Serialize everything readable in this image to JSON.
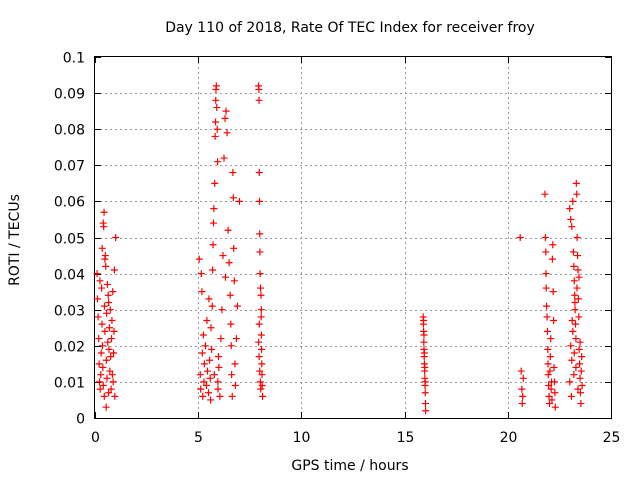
{
  "chart_data": {
    "type": "scatter",
    "title": "Day 110 of 2018, Rate Of TEC Index for receiver froy",
    "xlabel": "GPS time / hours",
    "ylabel": "ROTI / TECUs",
    "xlim": [
      0,
      25
    ],
    "ylim": [
      0,
      0.1
    ],
    "x_ticks": [
      0,
      5,
      10,
      15,
      20,
      25
    ],
    "x_tick_labels": [
      "0",
      "5",
      "10",
      "15",
      "20",
      "25"
    ],
    "y_ticks": [
      0,
      0.01,
      0.02,
      0.03,
      0.04,
      0.05,
      0.06,
      0.07,
      0.08,
      0.09,
      0.1
    ],
    "y_tick_labels": [
      "0",
      "0.01",
      "0.02",
      "0.03",
      "0.04",
      "0.05",
      "0.06",
      "0.07",
      "0.08",
      "0.09",
      "0.1"
    ],
    "grid": true,
    "marker": "+",
    "marker_color": "#ff0000",
    "series": [
      {
        "name": "ROTI",
        "points": [
          [
            0.1,
            0.04
          ],
          [
            0.12,
            0.033
          ],
          [
            0.15,
            0.028
          ],
          [
            0.18,
            0.022
          ],
          [
            0.2,
            0.015
          ],
          [
            0.22,
            0.01
          ],
          [
            0.25,
            0.008
          ],
          [
            0.28,
            0.012
          ],
          [
            0.3,
            0.018
          ],
          [
            0.32,
            0.036
          ],
          [
            0.34,
            0.026
          ],
          [
            0.36,
            0.02
          ],
          [
            0.38,
            0.014
          ],
          [
            0.4,
            0.009
          ],
          [
            0.4,
            0.054
          ],
          [
            0.42,
            0.053
          ],
          [
            0.44,
            0.057
          ],
          [
            0.45,
            0.006
          ],
          [
            0.46,
            0.031
          ],
          [
            0.48,
            0.024
          ],
          [
            0.5,
            0.045
          ],
          [
            0.52,
            0.042
          ],
          [
            0.54,
            0.003
          ],
          [
            0.55,
            0.016
          ],
          [
            0.56,
            0.029
          ],
          [
            0.58,
            0.011
          ],
          [
            0.6,
            0.037
          ],
          [
            0.62,
            0.021
          ],
          [
            0.64,
            0.034
          ],
          [
            0.66,
            0.007
          ],
          [
            0.68,
            0.019
          ],
          [
            0.7,
            0.025
          ],
          [
            0.72,
            0.013
          ],
          [
            0.74,
            0.03
          ],
          [
            0.76,
            0.017
          ],
          [
            0.78,
            0.008
          ],
          [
            0.8,
            0.022
          ],
          [
            0.82,
            0.027
          ],
          [
            0.84,
            0.012
          ],
          [
            0.86,
            0.035
          ],
          [
            0.88,
            0.01
          ],
          [
            0.9,
            0.018
          ],
          [
            0.92,
            0.024
          ],
          [
            0.94,
            0.041
          ],
          [
            0.96,
            0.006
          ],
          [
            1.0,
            0.05
          ],
          [
            0.35,
            0.047
          ],
          [
            0.48,
            0.044
          ],
          [
            0.24,
            0.038
          ],
          [
            0.66,
            0.032
          ],
          [
            5.05,
            0.044
          ],
          [
            5.1,
            0.012
          ],
          [
            5.12,
            0.008
          ],
          [
            5.15,
            0.04
          ],
          [
            5.18,
            0.035
          ],
          [
            5.2,
            0.018
          ],
          [
            5.22,
            0.006
          ],
          [
            5.25,
            0.023
          ],
          [
            5.28,
            0.01
          ],
          [
            5.3,
            0.015
          ],
          [
            5.35,
            0.02
          ],
          [
            5.4,
            0.009
          ],
          [
            5.42,
            0.027
          ],
          [
            5.45,
            0.013
          ],
          [
            5.5,
            0.007
          ],
          [
            5.52,
            0.033
          ],
          [
            5.55,
            0.016
          ],
          [
            5.58,
            0.011
          ],
          [
            5.6,
            0.005
          ],
          [
            5.62,
            0.025
          ],
          [
            5.65,
            0.019
          ],
          [
            5.68,
            0.031
          ],
          [
            5.7,
            0.041
          ],
          [
            5.72,
            0.048
          ],
          [
            5.74,
            0.054
          ],
          [
            5.76,
            0.058
          ],
          [
            5.78,
            0.012
          ],
          [
            5.8,
            0.065
          ],
          [
            5.82,
            0.078
          ],
          [
            5.84,
            0.082
          ],
          [
            5.85,
            0.088
          ],
          [
            5.86,
            0.091
          ],
          [
            5.88,
            0.092
          ],
          [
            5.9,
            0.086
          ],
          [
            5.92,
            0.08
          ],
          [
            5.94,
            0.071
          ],
          [
            5.95,
            0.01
          ],
          [
            5.96,
            0.008
          ],
          [
            5.98,
            0.017
          ],
          [
            6.0,
            0.014
          ],
          [
            6.05,
            0.006
          ],
          [
            6.1,
            0.022
          ],
          [
            6.15,
            0.03
          ],
          [
            6.2,
            0.045
          ],
          [
            6.25,
            0.072
          ],
          [
            6.3,
            0.083
          ],
          [
            6.35,
            0.085
          ],
          [
            6.4,
            0.079
          ],
          [
            6.45,
            0.052
          ],
          [
            6.5,
            0.043
          ],
          [
            6.55,
            0.034
          ],
          [
            6.58,
            0.026
          ],
          [
            6.6,
            0.02
          ],
          [
            6.62,
            0.012
          ],
          [
            6.65,
            0.006
          ],
          [
            6.68,
            0.068
          ],
          [
            6.7,
            0.061
          ],
          [
            6.72,
            0.047
          ],
          [
            6.75,
            0.038
          ],
          [
            6.78,
            0.015
          ],
          [
            6.8,
            0.009
          ],
          [
            6.85,
            0.022
          ],
          [
            6.9,
            0.031
          ],
          [
            7.0,
            0.06
          ],
          [
            6.32,
            0.039
          ],
          [
            7.92,
            0.092
          ],
          [
            7.94,
            0.091
          ],
          [
            7.95,
            0.088
          ],
          [
            7.96,
            0.068
          ],
          [
            7.97,
            0.06
          ],
          [
            7.98,
            0.051
          ],
          [
            7.99,
            0.046
          ],
          [
            8.0,
            0.04
          ],
          [
            8.02,
            0.036
          ],
          [
            8.04,
            0.034
          ],
          [
            8.05,
            0.028
          ],
          [
            8.06,
            0.023
          ],
          [
            8.07,
            0.019
          ],
          [
            8.08,
            0.015
          ],
          [
            8.09,
            0.012
          ],
          [
            8.1,
            0.009
          ],
          [
            8.12,
            0.006
          ],
          [
            7.93,
            0.021
          ],
          [
            7.95,
            0.017
          ],
          [
            7.98,
            0.013
          ],
          [
            8.01,
            0.01
          ],
          [
            8.03,
            0.008
          ],
          [
            7.96,
            0.026
          ],
          [
            8.06,
            0.03
          ],
          [
            15.9,
            0.028
          ],
          [
            15.91,
            0.026
          ],
          [
            15.92,
            0.024
          ],
          [
            15.93,
            0.021
          ],
          [
            15.94,
            0.019
          ],
          [
            15.95,
            0.017
          ],
          [
            15.96,
            0.015
          ],
          [
            15.97,
            0.013
          ],
          [
            15.98,
            0.011
          ],
          [
            15.99,
            0.009
          ],
          [
            16.0,
            0.007
          ],
          [
            16.01,
            0.004
          ],
          [
            16.02,
            0.002
          ],
          [
            15.94,
            0.023
          ],
          [
            15.96,
            0.018
          ],
          [
            15.98,
            0.014
          ],
          [
            16.0,
            0.01
          ],
          [
            15.92,
            0.027
          ],
          [
            20.6,
            0.05
          ],
          [
            20.65,
            0.013
          ],
          [
            20.68,
            0.008
          ],
          [
            20.7,
            0.004
          ],
          [
            20.72,
            0.006
          ],
          [
            20.75,
            0.011
          ],
          [
            21.8,
            0.062
          ],
          [
            21.82,
            0.05
          ],
          [
            21.84,
            0.046
          ],
          [
            21.85,
            0.04
          ],
          [
            21.86,
            0.036
          ],
          [
            21.88,
            0.031
          ],
          [
            21.9,
            0.028
          ],
          [
            21.92,
            0.024
          ],
          [
            21.94,
            0.019
          ],
          [
            21.95,
            0.015
          ],
          [
            21.96,
            0.012
          ],
          [
            21.98,
            0.009
          ],
          [
            22.0,
            0.006
          ],
          [
            22.02,
            0.004
          ],
          [
            22.04,
            0.013
          ],
          [
            22.06,
            0.017
          ],
          [
            22.08,
            0.022
          ],
          [
            22.1,
            0.008
          ],
          [
            22.12,
            0.01
          ],
          [
            22.14,
            0.005
          ],
          [
            22.16,
            0.044
          ],
          [
            22.18,
            0.048
          ],
          [
            22.2,
            0.035
          ],
          [
            22.22,
            0.027
          ],
          [
            22.24,
            0.014
          ],
          [
            22.26,
            0.01
          ],
          [
            22.28,
            0.007
          ],
          [
            22.3,
            0.003
          ],
          [
            23.0,
            0.058
          ],
          [
            23.05,
            0.055
          ],
          [
            23.1,
            0.053
          ],
          [
            23.15,
            0.06
          ],
          [
            23.18,
            0.046
          ],
          [
            23.2,
            0.042
          ],
          [
            23.22,
            0.038
          ],
          [
            23.24,
            0.034
          ],
          [
            23.26,
            0.03
          ],
          [
            23.28,
            0.026
          ],
          [
            23.3,
            0.022
          ],
          [
            23.32,
            0.065
          ],
          [
            23.34,
            0.062
          ],
          [
            23.36,
            0.05
          ],
          [
            23.38,
            0.045
          ],
          [
            23.4,
            0.041
          ],
          [
            23.42,
            0.033
          ],
          [
            23.44,
            0.028
          ],
          [
            23.46,
            0.019
          ],
          [
            23.48,
            0.015
          ],
          [
            23.5,
            0.011
          ],
          [
            23.52,
            0.007
          ],
          [
            23.54,
            0.004
          ],
          [
            23.56,
            0.013
          ],
          [
            23.58,
            0.017
          ],
          [
            23.6,
            0.009
          ],
          [
            23.2,
            0.012
          ],
          [
            23.1,
            0.016
          ],
          [
            23.05,
            0.02
          ],
          [
            23.15,
            0.024
          ],
          [
            23.25,
            0.032
          ],
          [
            23.35,
            0.036
          ],
          [
            23.45,
            0.039
          ],
          [
            23.0,
            0.01
          ],
          [
            23.08,
            0.006
          ],
          [
            23.12,
            0.027
          ],
          [
            23.22,
            0.018
          ],
          [
            23.3,
            0.014
          ],
          [
            23.4,
            0.008
          ],
          [
            23.5,
            0.021
          ]
        ]
      }
    ]
  }
}
